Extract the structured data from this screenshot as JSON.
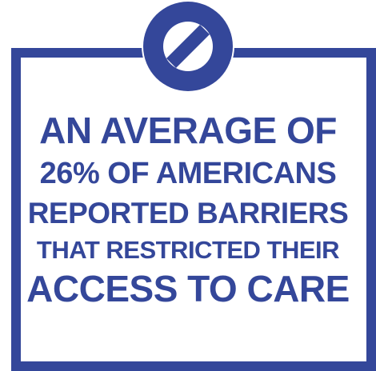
{
  "colors": {
    "brand_blue": "#34479a",
    "background": "#ffffff"
  },
  "icon": "prohibition-icon",
  "message": {
    "line1": "AN AVERAGE OF",
    "line2": "26% OF AMERICANS",
    "line3": "REPORTED BARRIERS",
    "line4": "THAT RESTRICTED THEIR",
    "line5": "ACCESS TO CARE"
  }
}
